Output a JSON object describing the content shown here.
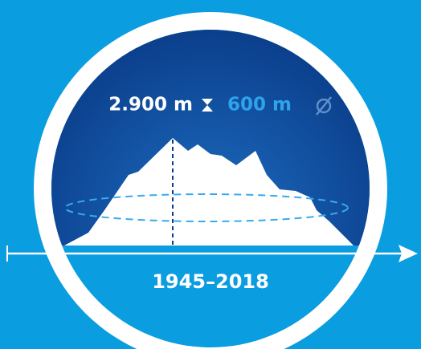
{
  "elevation": "2.900 m",
  "diameter": "600 m",
  "period": "1945–2018"
}
